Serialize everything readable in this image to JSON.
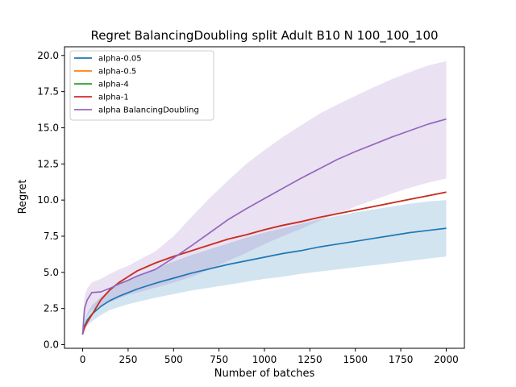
{
  "chart_data": {
    "type": "line",
    "title": "Regret BalancingDoubling split Adult B10 N 100_100_100",
    "xlabel": "Number of batches",
    "ylabel": "Regret",
    "xlim": [
      -100,
      2100
    ],
    "ylim": [
      -0.25,
      20.6
    ],
    "xticks": [
      0,
      250,
      500,
      750,
      1000,
      1250,
      1500,
      1750,
      2000
    ],
    "yticks": [
      0.0,
      2.5,
      5.0,
      7.5,
      10.0,
      12.5,
      15.0,
      17.5,
      20.0
    ],
    "xtick_labels": [
      "0",
      "250",
      "500",
      "750",
      "1000",
      "1250",
      "1500",
      "1750",
      "2000"
    ],
    "ytick_labels": [
      "0.0",
      "2.5",
      "5.0",
      "7.5",
      "10.0",
      "12.5",
      "15.0",
      "17.5",
      "20.0"
    ],
    "grid": false,
    "legend_position": "upper-left",
    "x": [
      0,
      10,
      25,
      50,
      100,
      150,
      200,
      250,
      300,
      400,
      500,
      600,
      700,
      800,
      900,
      1000,
      1100,
      1200,
      1300,
      1400,
      1500,
      1600,
      1700,
      1800,
      1900,
      2000
    ],
    "series": [
      {
        "name": "alpha-0.05",
        "color": "#1f77b4",
        "values": [
          0.7,
          1.3,
          1.7,
          2.1,
          2.65,
          3.05,
          3.35,
          3.6,
          3.85,
          4.25,
          4.6,
          4.95,
          5.25,
          5.55,
          5.8,
          6.05,
          6.3,
          6.5,
          6.75,
          6.95,
          7.15,
          7.35,
          7.55,
          7.75,
          7.9,
          8.05
        ],
        "band_lower": [
          0.6,
          1.0,
          1.3,
          1.6,
          2.05,
          2.4,
          2.6,
          2.8,
          2.95,
          3.25,
          3.5,
          3.75,
          3.95,
          4.15,
          4.35,
          4.55,
          4.7,
          4.9,
          5.05,
          5.2,
          5.35,
          5.5,
          5.65,
          5.8,
          5.95,
          6.1
        ],
        "band_upper": [
          0.8,
          1.6,
          2.15,
          2.7,
          3.3,
          3.8,
          4.15,
          4.45,
          4.75,
          5.25,
          5.75,
          6.2,
          6.6,
          7.0,
          7.4,
          7.75,
          8.05,
          8.35,
          8.65,
          8.9,
          9.15,
          9.35,
          9.55,
          9.75,
          9.9,
          10.0
        ]
      },
      {
        "name": "alpha-0.5",
        "color": "#ff7f0e",
        "values": [
          0.75,
          1.2,
          1.55,
          2.05,
          3.1,
          3.8,
          4.3,
          4.7,
          5.1,
          5.65,
          6.1,
          6.5,
          6.9,
          7.3,
          7.6,
          7.95,
          8.25,
          8.5,
          8.8,
          9.05,
          9.3,
          9.55,
          9.8,
          10.05,
          10.3,
          10.55
        ]
      },
      {
        "name": "alpha-4",
        "color": "#2ca02c",
        "values": [
          0.75,
          1.2,
          1.55,
          2.05,
          3.1,
          3.8,
          4.3,
          4.7,
          5.1,
          5.65,
          6.1,
          6.5,
          6.9,
          7.3,
          7.6,
          7.95,
          8.25,
          8.5,
          8.8,
          9.05,
          9.3,
          9.55,
          9.8,
          10.05,
          10.3,
          10.55
        ]
      },
      {
        "name": "alpha-1",
        "color": "#d62728",
        "values": [
          0.75,
          1.2,
          1.55,
          2.05,
          3.1,
          3.8,
          4.3,
          4.7,
          5.1,
          5.65,
          6.1,
          6.5,
          6.9,
          7.3,
          7.6,
          7.95,
          8.25,
          8.5,
          8.8,
          9.05,
          9.3,
          9.55,
          9.8,
          10.05,
          10.3,
          10.55
        ]
      },
      {
        "name": "alpha BalancingDoubling",
        "color": "#9467bd",
        "values": [
          0.7,
          2.5,
          3.1,
          3.6,
          3.65,
          3.9,
          4.2,
          4.45,
          4.75,
          5.2,
          6.0,
          6.85,
          7.75,
          8.65,
          9.4,
          10.1,
          10.8,
          11.5,
          12.15,
          12.8,
          13.35,
          13.85,
          14.35,
          14.8,
          15.25,
          15.6
        ],
        "band_lower": [
          0.6,
          1.5,
          2.0,
          2.4,
          2.7,
          2.95,
          3.2,
          3.45,
          3.6,
          3.95,
          4.3,
          4.7,
          5.2,
          5.8,
          6.35,
          6.95,
          7.5,
          8.0,
          8.55,
          9.05,
          9.55,
          10.0,
          10.45,
          10.85,
          11.2,
          11.5
        ],
        "band_upper": [
          0.9,
          3.3,
          3.9,
          4.3,
          4.55,
          4.9,
          5.2,
          5.45,
          5.8,
          6.45,
          7.5,
          8.85,
          10.15,
          11.35,
          12.5,
          13.45,
          14.35,
          15.15,
          15.95,
          16.6,
          17.2,
          17.8,
          18.35,
          18.85,
          19.3,
          19.6
        ]
      }
    ]
  }
}
